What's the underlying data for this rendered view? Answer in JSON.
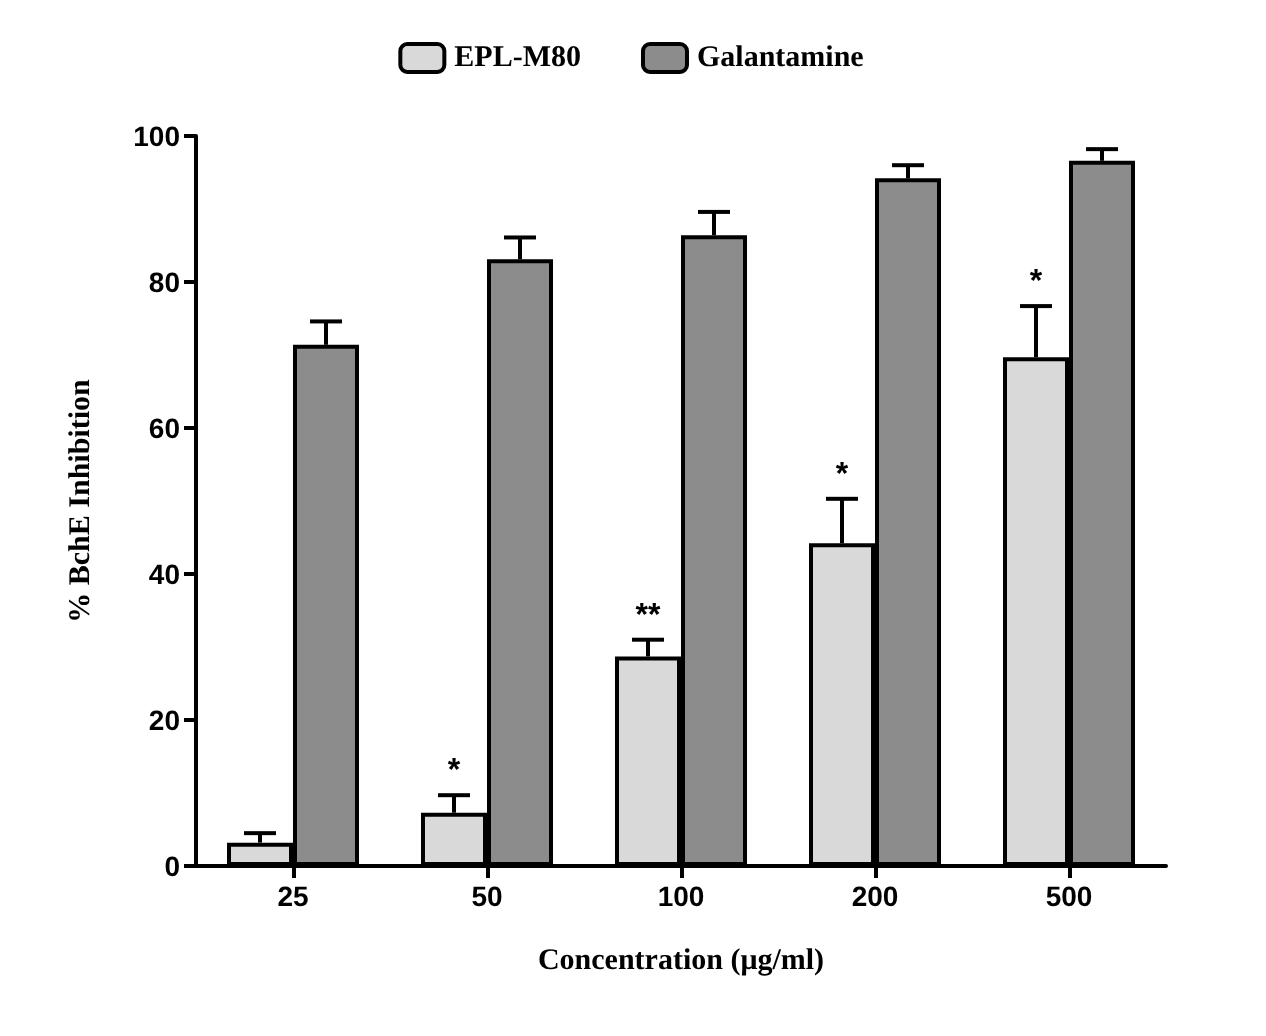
{
  "chart_data": {
    "type": "bar",
    "xlabel": "Concentration (μg/ml)",
    "ylabel": "% BchE Inhibition",
    "categories": [
      "25",
      "50",
      "100",
      "200",
      "500"
    ],
    "series": [
      {
        "name": "EPL-M80",
        "color": "#d9d9d9",
        "values": [
          3.2,
          7.3,
          28.7,
          44.2,
          69.7
        ],
        "errors": [
          [
            3.2,
            4.5
          ],
          [
            7.3,
            9.7
          ],
          [
            28.7,
            31.0
          ],
          [
            44.2,
            50.3
          ],
          [
            69.7,
            76.7
          ]
        ]
      },
      {
        "name": "Galantamine",
        "color": "#8c8c8c",
        "values": [
          71.4,
          83.1,
          86.4,
          94.2,
          96.6
        ],
        "errors": [
          [
            71.4,
            74.6
          ],
          [
            83.1,
            86.1
          ],
          [
            86.4,
            89.6
          ],
          [
            94.2,
            96.0
          ],
          [
            96.6,
            98.2
          ]
        ]
      }
    ],
    "annotations": [
      {
        "text": "*",
        "x": "50",
        "y": 9.7
      },
      {
        "text": "**",
        "x": "100",
        "y": 31.0
      },
      {
        "text": "*",
        "x": "200",
        "y": 50.3
      },
      {
        "text": "*",
        "x": "500",
        "y": 76.7
      }
    ],
    "ylim": [
      0,
      100
    ],
    "yticks": [
      0,
      20,
      40,
      60,
      80,
      100
    ],
    "grid": false,
    "legend": "top"
  }
}
